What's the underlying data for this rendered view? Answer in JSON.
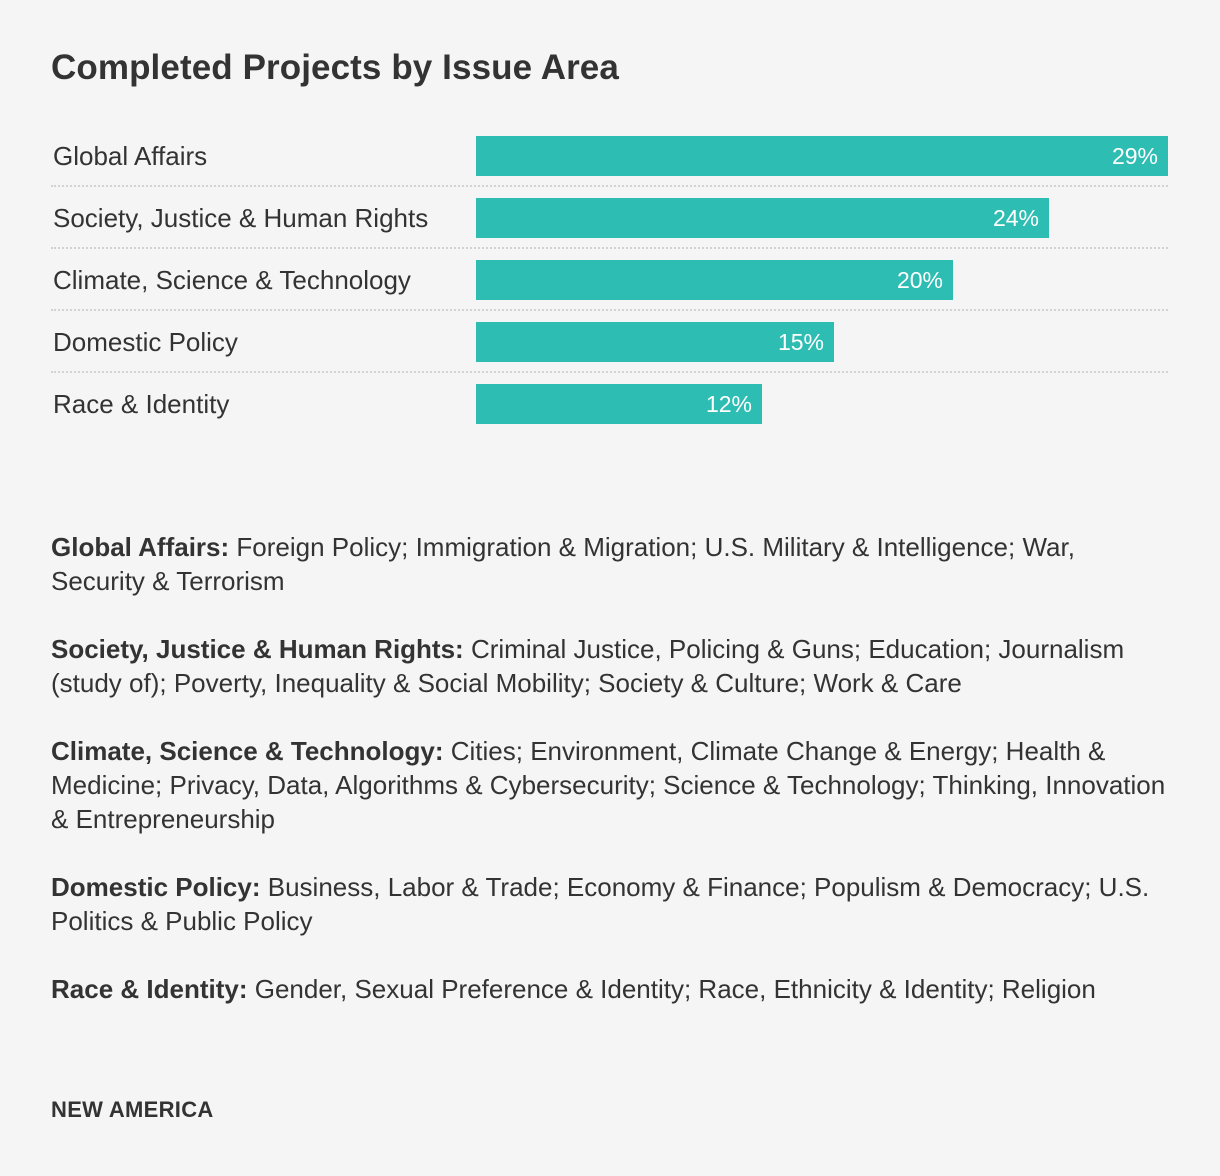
{
  "chart_data": {
    "type": "bar",
    "orientation": "horizontal",
    "title": "Completed Projects by Issue Area",
    "categories": [
      "Global Affairs",
      "Society, Justice & Human Rights",
      "Climate, Science & Technology",
      "Domestic Policy",
      "Race & Identity"
    ],
    "values": [
      29,
      24,
      20,
      15,
      12
    ],
    "value_labels": [
      "29%",
      "24%",
      "20%",
      "15%",
      "12%"
    ],
    "unit": "%",
    "xlim": [
      0,
      29
    ],
    "xlabel": "",
    "ylabel": "",
    "bar_color": "#2ebdb3"
  },
  "legend": [
    {
      "term": "Global Affairs:",
      "text": "Foreign Policy; Immigration & Migration; U.S. Military & Intelligence; War, Security & Terrorism"
    },
    {
      "term": "Society, Justice & Human Rights:",
      "text": "Criminal Justice, Policing & Guns; Education; Journalism (study of); Poverty, Inequality & Social Mobility; Society & Culture; Work & Care"
    },
    {
      "term": "Climate, Science & Technology:",
      "text": "Cities; Environment, Climate Change & Energy; Health & Medicine; Privacy, Data, Algorithms & Cybersecurity; Science & Technology; Thinking, Innovation & Entrepreneurship"
    },
    {
      "term": "Domestic Policy:",
      "text": "Business, Labor & Trade; Economy & Finance; Populism & Democracy; U.S. Politics & Public Policy"
    },
    {
      "term": "Race & Identity:",
      "text": "Gender, Sexual Preference & Identity; Race, Ethnicity & Identity; Religion"
    }
  ],
  "source": "NEW AMERICA",
  "colors": {
    "background": "#f5f5f5",
    "text": "#333333",
    "bar": "#2ebdb3",
    "divider": "#d2d2d2"
  }
}
